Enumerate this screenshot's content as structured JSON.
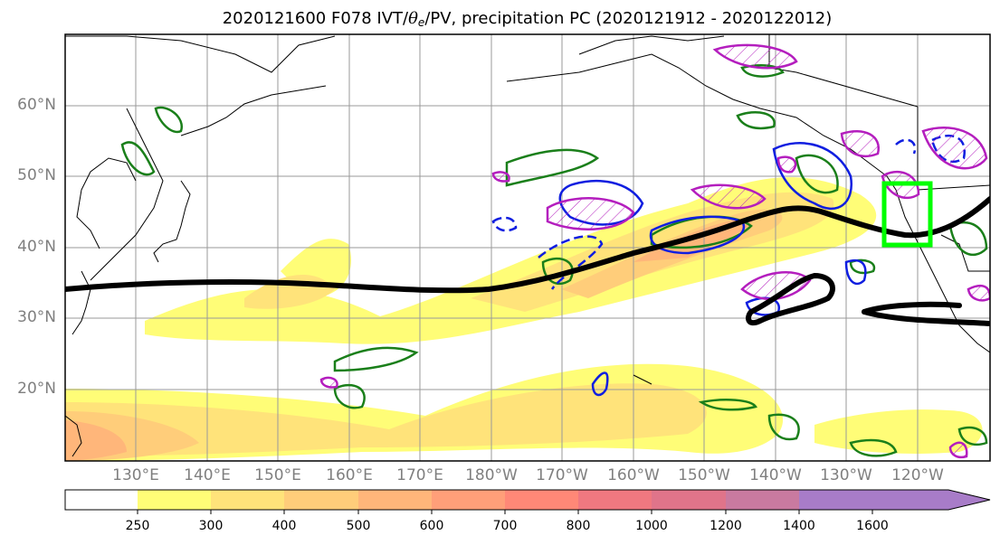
{
  "title": {
    "prefix": "2020121600 F078 IVT/",
    "theta": "θ",
    "theta_sub": "e",
    "suffix": "/PV, precipitation PC (2020121912 - 2020122012)"
  },
  "lat_labels": [
    "60°N",
    "50°N",
    "40°N",
    "30°N",
    "20°N"
  ],
  "lon_labels": [
    "130°E",
    "140°E",
    "150°E",
    "160°E",
    "170°E",
    "180°W",
    "170°W",
    "160°W",
    "150°W",
    "140°W",
    "130°W",
    "120°W"
  ],
  "colorbar": {
    "ticks": [
      "250",
      "300",
      "400",
      "500",
      "600",
      "700",
      "800",
      "1000",
      "1200",
      "1400",
      "1600"
    ],
    "colors": [
      "#ffffff",
      "#fffd77",
      "#ffe37a",
      "#ffcd7a",
      "#ffb67a",
      "#ff9f79",
      "#ff8877",
      "#f07880",
      "#e0748a",
      "#c97aa0",
      "#a87cc8"
    ],
    "extend": "max"
  },
  "colors": {
    "ivt_contour": "#000000",
    "green_contour": "#1a7f1a",
    "blue_contour": "#0f1ee0",
    "magenta_contour": "#b41ebe",
    "highlight_box": "#00ff00",
    "gridlines": "#9a9a9a",
    "tick_labels": "#7f7f7f"
  }
}
